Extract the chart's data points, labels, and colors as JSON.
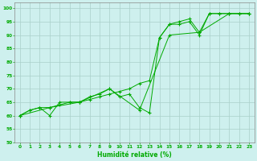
{
  "line1_x": [
    0,
    1,
    2,
    3,
    4,
    5,
    6,
    7,
    8,
    9,
    10,
    11,
    12,
    13,
    14,
    15,
    16,
    17,
    18,
    19,
    20,
    21,
    22,
    23
  ],
  "line1_y": [
    60,
    62,
    63,
    63,
    64,
    65,
    65,
    66,
    67,
    68,
    69,
    70,
    72,
    73,
    89,
    94,
    94,
    95,
    90,
    98,
    98,
    98,
    98,
    98
  ],
  "line2_x": [
    0,
    1,
    2,
    3,
    4,
    5,
    6,
    7,
    8,
    9,
    10,
    11,
    12,
    13,
    14,
    15,
    16,
    17,
    18,
    19,
    20,
    21,
    22,
    23
  ],
  "line2_y": [
    60,
    62,
    63,
    60,
    65,
    65,
    65,
    67,
    68,
    70,
    67,
    68,
    63,
    61,
    89,
    94,
    95,
    96,
    91,
    98,
    98,
    98,
    98,
    98
  ],
  "line3_x": [
    0,
    3,
    6,
    9,
    12,
    15,
    18,
    21,
    23
  ],
  "line3_y": [
    60,
    63,
    65,
    70,
    62,
    90,
    91,
    98,
    98
  ],
  "bg_color": "#cef0ee",
  "grid_color": "#aacfca",
  "line_color": "#00aa00",
  "xlabel": "Humidité relative (%)",
  "xlim_min": -0.5,
  "xlim_max": 23.5,
  "ylim_min": 50,
  "ylim_max": 102,
  "yticks": [
    50,
    55,
    60,
    65,
    70,
    75,
    80,
    85,
    90,
    95,
    100
  ],
  "xticks": [
    0,
    1,
    2,
    3,
    4,
    5,
    6,
    7,
    8,
    9,
    10,
    11,
    12,
    13,
    14,
    15,
    16,
    17,
    18,
    19,
    20,
    21,
    22,
    23
  ],
  "figwidth": 3.2,
  "figheight": 2.0,
  "dpi": 100
}
